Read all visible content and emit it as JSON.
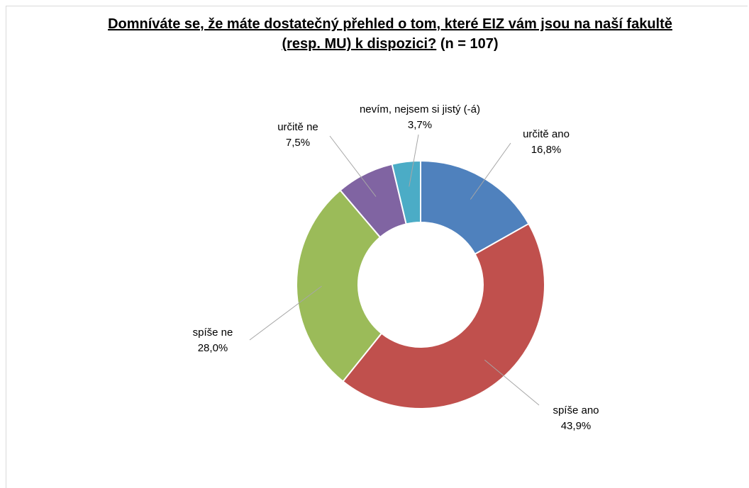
{
  "chart_data": {
    "type": "donut",
    "title": "Domníváte se, že máte dostatečný přehled o tom, které EIZ vám jsou na naší fakultě (resp. MU) k dispozici?",
    "subtitle": "(n = 107)",
    "categories": [
      "určitě ano",
      "spíše ano",
      "spíše ne",
      "určitě ne",
      "nevím, nejsem si jistý (-á)"
    ],
    "values": [
      16.8,
      43.9,
      28.0,
      7.5,
      3.7
    ],
    "value_labels": [
      "16,8%",
      "43,9%",
      "28,0%",
      "7,5%",
      "3,7%"
    ],
    "colors": [
      "#4f81bd",
      "#c0504d",
      "#9bbb59",
      "#8064a2",
      "#4bacc6"
    ]
  }
}
